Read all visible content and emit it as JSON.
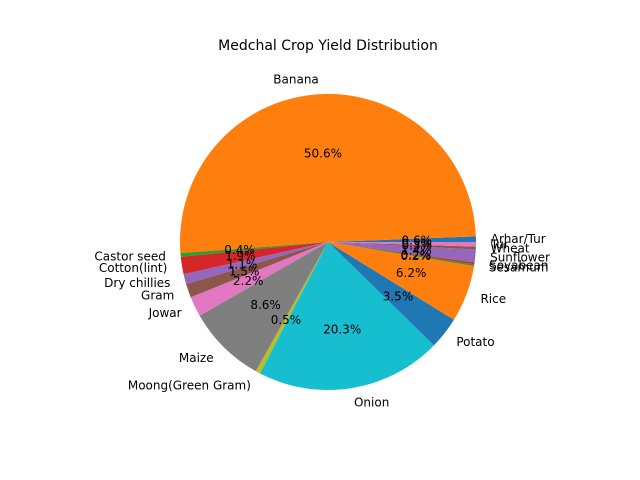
{
  "chart_data": {
    "type": "pie",
    "title": "Medchal Crop Yield Distribution",
    "start_angle_deg": 0,
    "direction": "counterclockwise",
    "slices": [
      {
        "label": "Arhar/Tur",
        "value": 0.6,
        "pct_label": "0.6%",
        "color": "#1f77b4"
      },
      {
        "label": "Banana",
        "value": 50.6,
        "pct_label": "50.6%",
        "color": "#ff7f0e"
      },
      {
        "label": "Castor seed",
        "value": 0.4,
        "pct_label": "0.4%",
        "color": "#2ca02c"
      },
      {
        "label": "Cotton(lint)",
        "value": 1.9,
        "pct_label": "1.9%",
        "color": "#d62728"
      },
      {
        "label": "Dry chillies",
        "value": 1.1,
        "pct_label": "1.1%",
        "color": "#9467bd"
      },
      {
        "label": "Gram",
        "value": 1.5,
        "pct_label": "1.5%",
        "color": "#8c564b"
      },
      {
        "label": "Jowar",
        "value": 2.2,
        "pct_label": "2.2%",
        "color": "#e377c2"
      },
      {
        "label": "Maize",
        "value": 8.6,
        "pct_label": "8.6%",
        "color": "#7f7f7f"
      },
      {
        "label": "Moong(Green Gram)",
        "value": 0.5,
        "pct_label": "0.5%",
        "color": "#bcbd22"
      },
      {
        "label": "Onion",
        "value": 20.3,
        "pct_label": "20.3%",
        "color": "#17becf"
      },
      {
        "label": "Potato",
        "value": 3.5,
        "pct_label": "3.5%",
        "color": "#1f77b4"
      },
      {
        "label": "Rice",
        "value": 6.2,
        "pct_label": "6.2%",
        "color": "#ff7f0e"
      },
      {
        "label": "Sesamum",
        "value": 0.2,
        "pct_label": "0.2%",
        "color": "#2ca02c"
      },
      {
        "label": "Soyabean",
        "value": 0.2,
        "pct_label": "0.2%",
        "color": "#d62728"
      },
      {
        "label": "Sunflower",
        "value": 1.4,
        "pct_label": "1.4%",
        "color": "#9467bd"
      },
      {
        "label": "Wheat",
        "value": 0.3,
        "pct_label": "0.3%",
        "color": "#8c564b"
      },
      {
        "label": "Tur",
        "value": 0.5,
        "pct_label": "0.5%",
        "color": "#e377c2"
      }
    ]
  }
}
